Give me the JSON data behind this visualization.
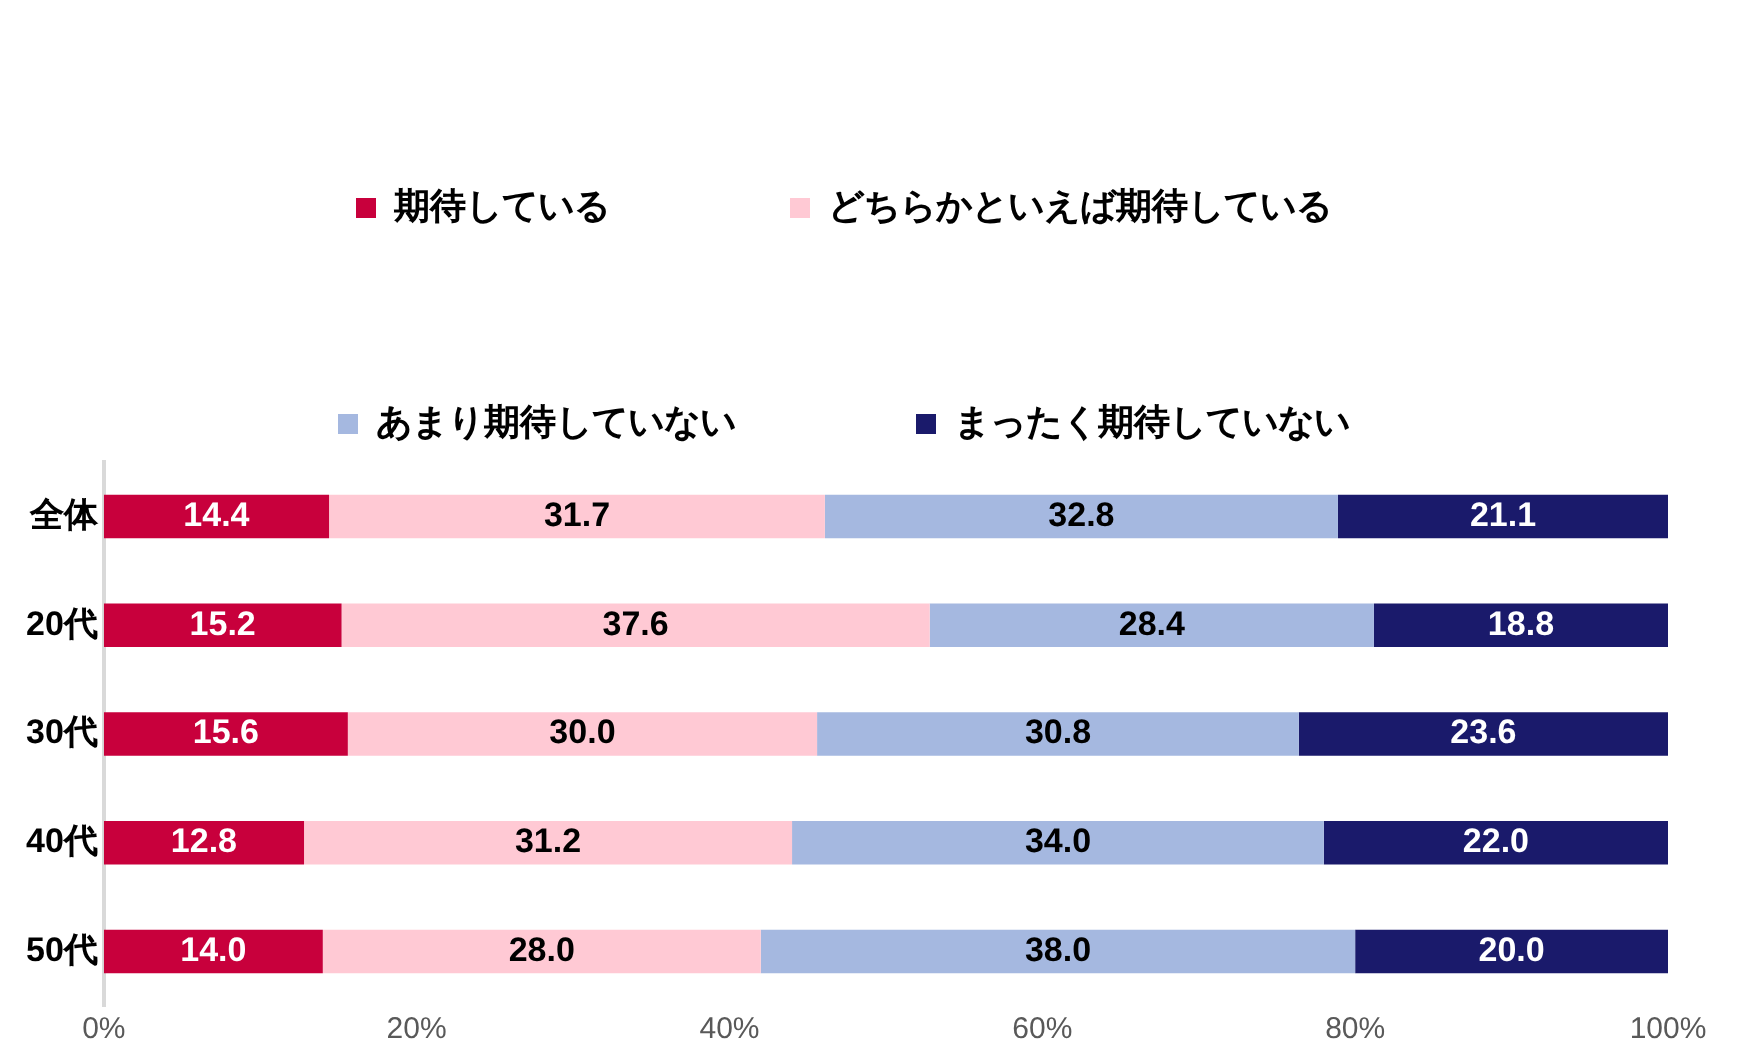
{
  "chart_data": {
    "type": "bar",
    "orientation": "horizontal",
    "stacked": true,
    "categories": [
      "全体",
      "20代",
      "30代",
      "40代",
      "50代"
    ],
    "series": [
      {
        "name": "期待している",
        "color": "#c8003c",
        "values": [
          14.4,
          15.2,
          15.6,
          12.8,
          14.0
        ],
        "value_labels": [
          "14.4",
          "15.2",
          "15.6",
          "12.8",
          "14.0"
        ]
      },
      {
        "name": "どちらかといえば期待している",
        "color": "#ffc9d4",
        "values": [
          31.7,
          37.6,
          30.0,
          31.2,
          28.0
        ],
        "value_labels": [
          "31.7",
          "37.6",
          "30.0",
          "31.2",
          "28.0"
        ]
      },
      {
        "name": "あまり期待していない",
        "color": "#a5b8e0",
        "values": [
          32.8,
          28.4,
          30.8,
          34.0,
          38.0
        ],
        "value_labels": [
          "32.8",
          "28.4",
          "30.8",
          "34.0",
          "38.0"
        ]
      },
      {
        "name": "まったく期待していない",
        "color": "#1a1a6b",
        "values": [
          21.1,
          18.8,
          23.6,
          22.0,
          20.0
        ],
        "value_labels": [
          "21.1",
          "18.8",
          "23.6",
          "22.0",
          "20.0"
        ]
      }
    ],
    "xlim": [
      0,
      100
    ],
    "xticks": [
      {
        "value": 0,
        "label": "0%"
      },
      {
        "value": 20,
        "label": "20%"
      },
      {
        "value": 40,
        "label": "40%"
      },
      {
        "value": 60,
        "label": "60%"
      },
      {
        "value": 80,
        "label": "80%"
      },
      {
        "value": 100,
        "label": "100%"
      }
    ],
    "grid": false,
    "legend": "top"
  }
}
